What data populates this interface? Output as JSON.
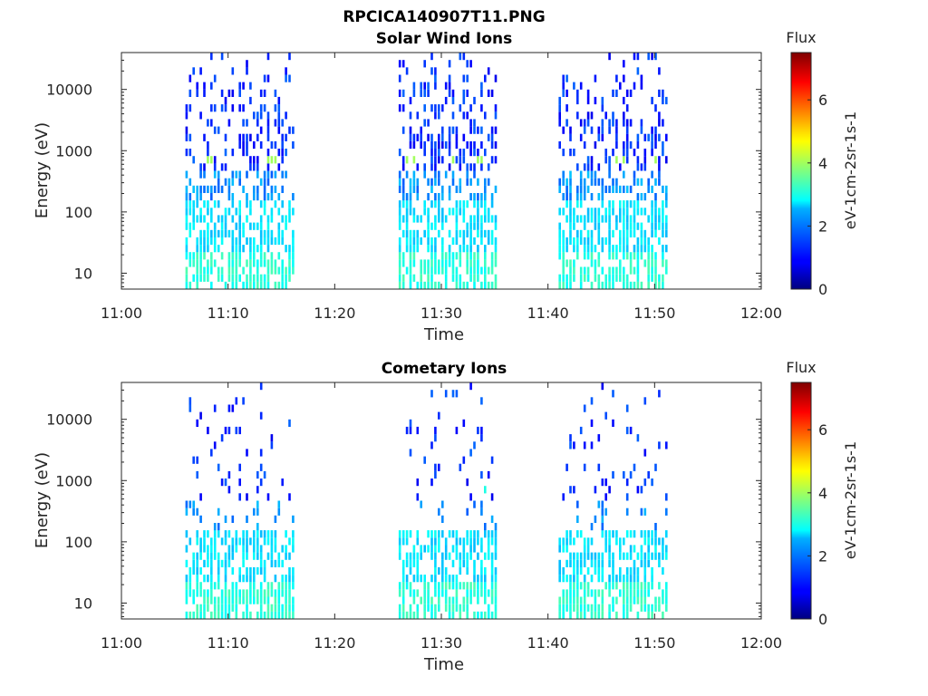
{
  "figure_title": "RPCICA140907T11.PNG",
  "chart_data": [
    {
      "type": "heatmap",
      "title": "Solar Wind Ions",
      "xlabel": "Time",
      "ylabel": "Energy (eV)",
      "x_ticks": [
        "11:00",
        "11:10",
        "11:20",
        "11:30",
        "11:40",
        "11:50",
        "12:00"
      ],
      "x_range": [
        "11:00",
        "12:00"
      ],
      "y_scale": "log",
      "y_range": [
        5.5,
        40000
      ],
      "y_ticks": [
        10,
        100,
        1000,
        10000
      ],
      "colorbar": {
        "title": "Flux",
        "label": "eV-1cm-2sr-1s-1",
        "range": [
          0,
          7.5
        ],
        "ticks": [
          0,
          2,
          4,
          6
        ]
      },
      "data_intervals": [
        [
          "11:06",
          "11:16"
        ],
        [
          "11:26",
          "11:35"
        ],
        [
          "11:41",
          "11:51"
        ]
      ],
      "peaks": [
        {
          "time": "11:08",
          "energy": 650,
          "flux": 4
        },
        {
          "time": "11:11",
          "energy": 650,
          "flux": 4
        },
        {
          "time": "11:14",
          "energy": 650,
          "flux": 4
        },
        {
          "time": "11:27",
          "energy": 650,
          "flux": 4
        },
        {
          "time": "11:30.5",
          "energy": 650,
          "flux": 4
        },
        {
          "time": "11:33.5",
          "energy": 650,
          "flux": 4
        },
        {
          "time": "11:43",
          "energy": 650,
          "flux": 4
        },
        {
          "time": "11:46.5",
          "energy": 650,
          "flux": 4
        },
        {
          "time": "11:49.5",
          "energy": 650,
          "flux": 4
        }
      ],
      "grid": false
    },
    {
      "type": "heatmap",
      "title": "Cometary Ions",
      "xlabel": "Time",
      "ylabel": "Energy (eV)",
      "x_ticks": [
        "11:00",
        "11:10",
        "11:20",
        "11:30",
        "11:40",
        "11:50",
        "12:00"
      ],
      "x_range": [
        "11:00",
        "12:00"
      ],
      "y_scale": "log",
      "y_range": [
        5.5,
        40000
      ],
      "y_ticks": [
        10,
        100,
        1000,
        10000
      ],
      "colorbar": {
        "title": "Flux",
        "label": "eV-1cm-2sr-1s-1",
        "range": [
          0,
          7.5
        ],
        "ticks": [
          0,
          2,
          4,
          6
        ]
      },
      "data_intervals": [
        [
          "11:06",
          "11:16"
        ],
        [
          "11:26",
          "11:35"
        ],
        [
          "11:41",
          "11:51"
        ]
      ],
      "peaks": [
        {
          "time": "11:08",
          "energy": 650,
          "flux": 3
        },
        {
          "time": "11:11",
          "energy": 650,
          "flux": 3
        },
        {
          "time": "11:14",
          "energy": 650,
          "flux": 3
        },
        {
          "time": "11:27",
          "energy": 650,
          "flux": 3
        },
        {
          "time": "11:30.5",
          "energy": 650,
          "flux": 3
        },
        {
          "time": "11:33.5",
          "energy": 650,
          "flux": 3
        },
        {
          "time": "11:43",
          "energy": 650,
          "flux": 3
        },
        {
          "time": "11:46.5",
          "energy": 650,
          "flux": 3
        },
        {
          "time": "11:49.5",
          "energy": 650,
          "flux": 3
        }
      ],
      "grid": false
    }
  ]
}
